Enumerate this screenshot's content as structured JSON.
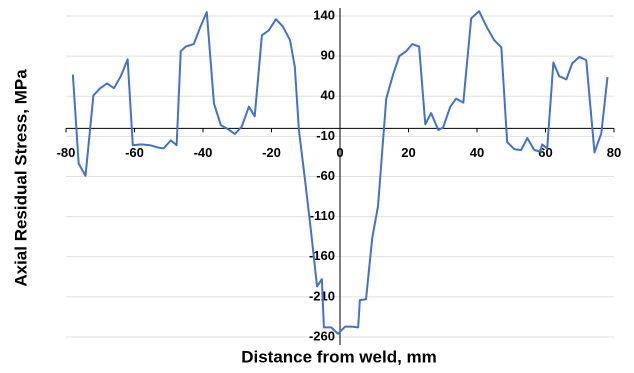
{
  "chart_data": {
    "type": "line",
    "x_label": "Distance from weld, mm",
    "y_label": "Axial Residual Stress, MPa",
    "x": [
      -78,
      -76.3,
      -74.3,
      -72,
      -70,
      -68,
      -66,
      -64,
      -62,
      -60.5,
      -58,
      -55.5,
      -53,
      -51.5,
      -49.4,
      -47.7,
      -46.5,
      -45,
      -42.7,
      -40.9,
      -38.9,
      -36.8,
      -34.8,
      -32.7,
      -30.7,
      -28.7,
      -26.6,
      -24.9,
      -22.8,
      -20.8,
      -18.7,
      -16.7,
      -14.6,
      -13.2,
      -12,
      -10.2,
      -8.5,
      -6.7,
      -5.3,
      -4.7,
      -2.6,
      -0.6,
      1.5,
      3.2,
      5.3,
      5.8,
      7.6,
      9.4,
      11.1,
      13.5,
      15.5,
      17.3,
      19.3,
      21.1,
      23.1,
      24.9,
      26.6,
      28.7,
      30.1,
      32.2,
      33.9,
      36,
      38.3,
      40.6,
      43,
      45,
      47.1,
      48.8,
      50.9,
      52.9,
      54.7,
      56.7,
      58.5,
      59,
      60.5,
      62.3,
      64,
      66.1,
      67.8,
      69.9,
      71.9,
      74.3,
      76.3,
      78.1
    ],
    "series": [
      {
        "color": "#4472c4",
        "values": [
          67,
          -44,
          -59,
          41,
          50,
          56,
          50,
          65,
          86,
          -21,
          -20,
          -21,
          -24,
          -25,
          -15,
          -21,
          96,
          102,
          105,
          125,
          145,
          31,
          4,
          -1,
          -7,
          2,
          27,
          15,
          116,
          122,
          136,
          127,
          110,
          77,
          -2,
          -65,
          -127,
          -197,
          -188,
          -248,
          -248,
          -256,
          -247,
          -247,
          -248,
          -214,
          -213,
          -137,
          -97,
          37,
          67,
          90,
          96,
          105,
          102,
          5,
          19,
          -2,
          1,
          27,
          37,
          32,
          137,
          146,
          125,
          110,
          101,
          -17,
          -26,
          -27,
          -12,
          -27,
          -29,
          -20,
          -25,
          82,
          65,
          61,
          81,
          89,
          85,
          -30,
          -6,
          64
        ]
      }
    ],
    "xlim": [
      -80,
      80
    ],
    "xticks": [
      -80,
      -60,
      -40,
      -20,
      0,
      20,
      40,
      60,
      80
    ],
    "ylim": [
      -260,
      140
    ],
    "yticks": [
      140,
      90,
      40,
      -10,
      -60,
      -110,
      -160,
      -210,
      -260
    ],
    "grid": true
  }
}
